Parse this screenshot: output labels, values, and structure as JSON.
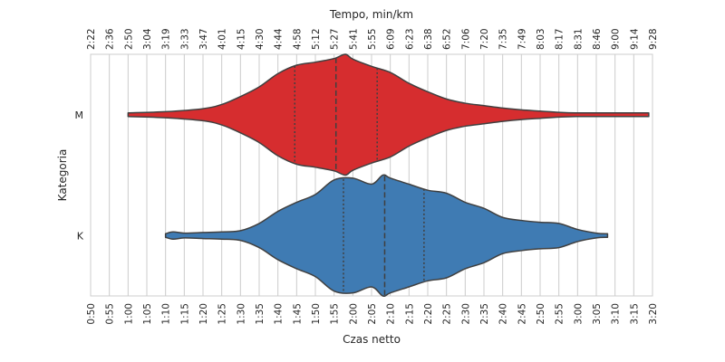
{
  "chart_data": {
    "type": "violin",
    "xlabel": "Czas netto",
    "x2label": "Tempo, min/km",
    "ylabel": "Kategoria",
    "xlim_minutes": [
      50,
      200
    ],
    "x_tick_labels": [
      "0:50",
      "0:55",
      "1:00",
      "1:05",
      "1:10",
      "1:15",
      "1:20",
      "1:25",
      "1:30",
      "1:35",
      "1:40",
      "1:45",
      "1:50",
      "1:55",
      "2:00",
      "2:05",
      "2:10",
      "2:15",
      "2:20",
      "2:25",
      "2:30",
      "2:35",
      "2:40",
      "2:45",
      "2:50",
      "2:55",
      "3:00",
      "3:05",
      "3:10",
      "3:15",
      "3:20"
    ],
    "x2_tick_labels": [
      "2:22",
      "2:36",
      "2:50",
      "3:04",
      "3:19",
      "3:33",
      "3:47",
      "4:01",
      "4:15",
      "4:30",
      "4:44",
      "4:58",
      "5:12",
      "5:27",
      "5:41",
      "5:55",
      "6:09",
      "6:23",
      "6:38",
      "6:52",
      "7:06",
      "7:20",
      "7:35",
      "7:49",
      "8:03",
      "8:17",
      "8:31",
      "8:46",
      "9:00",
      "9:14",
      "9:28"
    ],
    "grid": true,
    "categories": [
      "M",
      "K"
    ],
    "series": [
      {
        "name": "M",
        "color": "#d62d2f",
        "quartiles_minutes": [
          104.5,
          115.5,
          126.5
        ],
        "density": [
          [
            60,
            0.03
          ],
          [
            70,
            0.05
          ],
          [
            80,
            0.1
          ],
          [
            85,
            0.17
          ],
          [
            90,
            0.3
          ],
          [
            95,
            0.46
          ],
          [
            100,
            0.68
          ],
          [
            105,
            0.82
          ],
          [
            110,
            0.87
          ],
          [
            115,
            0.93
          ],
          [
            118,
            1.0
          ],
          [
            120,
            0.92
          ],
          [
            125,
            0.8
          ],
          [
            130,
            0.7
          ],
          [
            135,
            0.52
          ],
          [
            140,
            0.38
          ],
          [
            145,
            0.26
          ],
          [
            150,
            0.19
          ],
          [
            155,
            0.15
          ],
          [
            160,
            0.11
          ],
          [
            165,
            0.08
          ],
          [
            170,
            0.06
          ],
          [
            175,
            0.04
          ],
          [
            180,
            0.03
          ],
          [
            190,
            0.03
          ],
          [
            199,
            0.03
          ]
        ]
      },
      {
        "name": "K",
        "color": "#3f7bb3",
        "quartiles_minutes": [
          117.5,
          128.5,
          139
        ],
        "density": [
          [
            70,
            0.03
          ],
          [
            72,
            0.06
          ],
          [
            75,
            0.04
          ],
          [
            80,
            0.05
          ],
          [
            85,
            0.06
          ],
          [
            90,
            0.08
          ],
          [
            95,
            0.2
          ],
          [
            100,
            0.4
          ],
          [
            105,
            0.55
          ],
          [
            110,
            0.68
          ],
          [
            115,
            0.92
          ],
          [
            120,
            0.95
          ],
          [
            125,
            0.85
          ],
          [
            128,
            1.0
          ],
          [
            130,
            0.95
          ],
          [
            135,
            0.85
          ],
          [
            140,
            0.75
          ],
          [
            145,
            0.7
          ],
          [
            150,
            0.55
          ],
          [
            155,
            0.45
          ],
          [
            160,
            0.3
          ],
          [
            165,
            0.25
          ],
          [
            170,
            0.22
          ],
          [
            175,
            0.2
          ],
          [
            180,
            0.1
          ],
          [
            185,
            0.04
          ],
          [
            188,
            0.03
          ]
        ]
      }
    ]
  }
}
